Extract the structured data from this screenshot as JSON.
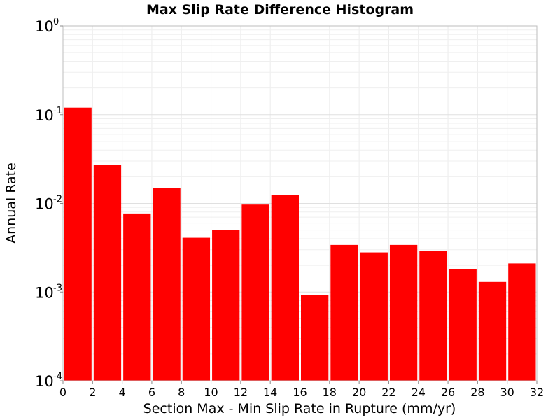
{
  "chart_data": {
    "type": "bar",
    "title": "Max Slip Rate Difference Histogram",
    "xlabel": "Section Max - Min Slip Rate in Rupture (mm/yr)",
    "ylabel": "Annual Rate",
    "xlim": [
      0,
      32
    ],
    "ylim": [
      0.0001,
      1
    ],
    "yscale": "log",
    "bin_width": 2,
    "x_ticks": [
      "0",
      "2",
      "4",
      "6",
      "8",
      "10",
      "12",
      "14",
      "16",
      "18",
      "20",
      "22",
      "24",
      "26",
      "28",
      "30",
      "32"
    ],
    "y_ticks": [
      {
        "base": "10",
        "exp": "0",
        "value": 1
      },
      {
        "base": "10",
        "exp": "-1",
        "value": 0.1
      },
      {
        "base": "10",
        "exp": "-2",
        "value": 0.01
      },
      {
        "base": "10",
        "exp": "-3",
        "value": 0.001
      },
      {
        "base": "10",
        "exp": "-4",
        "value": 0.0001
      }
    ],
    "bar_color": "#ff0000",
    "grid": true,
    "bins": [
      {
        "x0": 0,
        "x1": 2,
        "value": 0.12
      },
      {
        "x0": 2,
        "x1": 4,
        "value": 0.027
      },
      {
        "x0": 4,
        "x1": 6,
        "value": 0.0077
      },
      {
        "x0": 6,
        "x1": 8,
        "value": 0.015
      },
      {
        "x0": 8,
        "x1": 10,
        "value": 0.0041
      },
      {
        "x0": 10,
        "x1": 12,
        "value": 0.005
      },
      {
        "x0": 12,
        "x1": 14,
        "value": 0.0097
      },
      {
        "x0": 14,
        "x1": 16,
        "value": 0.0124
      },
      {
        "x0": 16,
        "x1": 18,
        "value": 0.00092
      },
      {
        "x0": 18,
        "x1": 20,
        "value": 0.0034
      },
      {
        "x0": 20,
        "x1": 22,
        "value": 0.0028
      },
      {
        "x0": 22,
        "x1": 24,
        "value": 0.0034
      },
      {
        "x0": 24,
        "x1": 26,
        "value": 0.0029
      },
      {
        "x0": 26,
        "x1": 28,
        "value": 0.0018
      },
      {
        "x0": 28,
        "x1": 30,
        "value": 0.0013
      },
      {
        "x0": 30,
        "x1": 32,
        "value": 0.0021
      }
    ]
  }
}
